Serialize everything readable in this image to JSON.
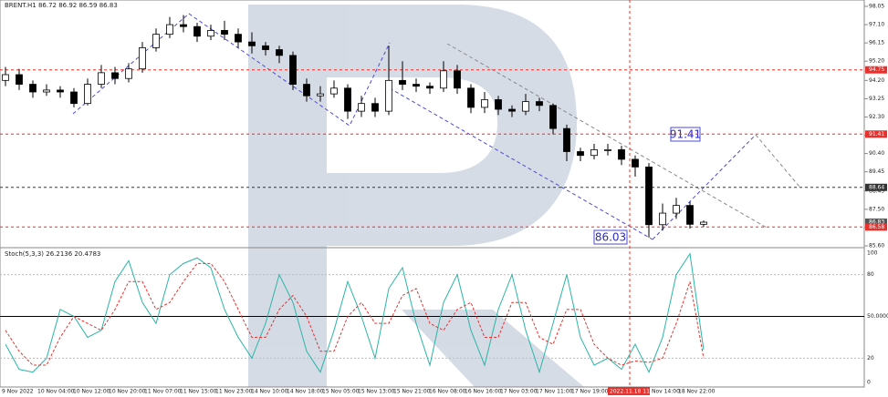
{
  "chart_data": {
    "type": "candlestick",
    "title": "BRENT.H1 86.72 86.92 86.59 86.83",
    "open": [
      94.2,
      94.5,
      94.0,
      93.6,
      93.7,
      93.6,
      93.0,
      94.0,
      94.6,
      94.3,
      94.8,
      95.9,
      96.6,
      97.1,
      97.0,
      96.5,
      96.8,
      96.6,
      96.2,
      96.0,
      95.8,
      95.5,
      94.0,
      93.4,
      93.5,
      93.8,
      92.6,
      93.0,
      92.6,
      94.2,
      94.0,
      93.9,
      93.8,
      94.7,
      93.8,
      92.8,
      93.2,
      92.7,
      92.6,
      93.1,
      92.9,
      91.7,
      90.5,
      90.3,
      90.6,
      90.6,
      90.1,
      89.7,
      86.7,
      87.3,
      87.7,
      86.72
    ],
    "high": [
      94.9,
      94.8,
      94.2,
      94.0,
      93.9,
      93.8,
      94.3,
      95.0,
      94.9,
      95.1,
      96.2,
      96.9,
      97.5,
      97.6,
      97.2,
      97.1,
      97.3,
      96.9,
      96.7,
      96.2,
      96.0,
      95.7,
      94.3,
      93.9,
      94.2,
      94.0,
      93.4,
      93.3,
      96.0,
      95.2,
      94.3,
      94.1,
      95.2,
      95.0,
      94.0,
      93.6,
      93.4,
      92.9,
      93.5,
      93.3,
      93.0,
      91.9,
      90.7,
      90.9,
      90.9,
      90.8,
      90.3,
      89.9,
      87.8,
      88.1,
      87.9,
      86.92
    ],
    "low": [
      93.9,
      93.7,
      93.3,
      93.4,
      93.3,
      92.8,
      92.9,
      93.8,
      94.0,
      94.1,
      94.6,
      95.7,
      96.4,
      96.7,
      96.2,
      96.3,
      96.3,
      95.9,
      95.6,
      95.5,
      95.1,
      93.7,
      93.1,
      93.1,
      93.3,
      92.2,
      92.3,
      92.3,
      92.4,
      93.7,
      93.6,
      93.5,
      93.6,
      93.5,
      92.5,
      92.5,
      92.4,
      92.3,
      92.4,
      92.6,
      91.4,
      90.0,
      90.0,
      90.1,
      90.3,
      89.8,
      89.2,
      86.03,
      86.4,
      87.0,
      86.5,
      86.59
    ],
    "close": [
      94.5,
      94.0,
      93.6,
      93.7,
      93.6,
      93.0,
      94.0,
      94.6,
      94.3,
      94.8,
      95.9,
      96.6,
      97.1,
      97.0,
      96.5,
      96.8,
      96.6,
      96.2,
      96.0,
      95.8,
      95.5,
      94.0,
      93.4,
      93.5,
      93.8,
      92.6,
      93.0,
      92.6,
      94.2,
      94.0,
      93.9,
      93.8,
      94.7,
      93.8,
      92.8,
      93.2,
      92.7,
      92.6,
      93.1,
      92.9,
      91.7,
      90.5,
      90.3,
      90.6,
      90.6,
      90.1,
      89.7,
      86.7,
      87.3,
      87.7,
      86.72,
      86.83
    ],
    "ylim": [
      85.6,
      98.05
    ],
    "yticks": [
      98.05,
      {
        "value": 97.1,
        "label": "97.10"
      },
      96.15,
      {
        "value": 95.2,
        "label": "95.20"
      },
      {
        "value": 94.2,
        "label": "94.20"
      },
      93.25,
      {
        "value": 92.3,
        "label": "92.30"
      },
      91.35,
      {
        "value": 90.4,
        "label": "90.40"
      },
      89.45,
      88.45,
      {
        "value": 87.5,
        "label": "87.50"
      },
      86.55,
      {
        "value": 85.6,
        "label": "85.60"
      }
    ],
    "levels": [
      {
        "value": 94.75,
        "label": "94.75",
        "color": "#e8302c",
        "line": true
      },
      {
        "value": 91.41,
        "label": "91.41",
        "color": "#e8302c",
        "line": true
      },
      {
        "value": 88.64,
        "label": "88.64",
        "color": "#333333",
        "line": true
      },
      {
        "value": 86.83,
        "label": "86.83",
        "color": "#555555",
        "line": false
      },
      {
        "value": 86.58,
        "label": "86.58",
        "color": "#e8302c",
        "line": true
      }
    ],
    "annotations": [
      "91.41",
      "86.03"
    ],
    "xlabels": [
      "9 Nov 2022",
      "10 Nov 04:00",
      "10 Nov 12:00",
      "10 Nov 20:00",
      "11 Nov 07:00",
      "11 Nov 15:00",
      "11 Nov 23:00",
      "14 Nov 10:00",
      "14 Nov 18:00",
      "15 Nov 05:00",
      "15 Nov 13:00",
      "15 Nov 21:00",
      "16 Nov 08:00",
      "16 Nov 16:00",
      "17 Nov 03:00",
      "17 Nov 11:00",
      "17 Nov 19:00",
      "2022.11.18 11:00",
      "Nov 14:00",
      "18 Nov 22:00"
    ],
    "oscillator": {
      "title": "Stoch(5,3,3) 26.2136 20.4783",
      "ylim": [
        0,
        100
      ],
      "yticks": [
        100,
        80,
        {
          "value": 50,
          "label": "50.0000"
        },
        20,
        0
      ],
      "series": [
        {
          "name": "main",
          "color": "#2ab5a8",
          "values": [
            30,
            12,
            10,
            20,
            55,
            50,
            35,
            40,
            75,
            90,
            60,
            45,
            80,
            88,
            92,
            85,
            55,
            35,
            20,
            45,
            80,
            60,
            25,
            10,
            40,
            75,
            50,
            20,
            70,
            85,
            45,
            15,
            60,
            80,
            40,
            15,
            55,
            80,
            40,
            10,
            45,
            80,
            35,
            15,
            20,
            12,
            30,
            10,
            35,
            80,
            95,
            26
          ]
        },
        {
          "name": "signal",
          "color": "#e8302c",
          "values": [
            40,
            25,
            15,
            15,
            35,
            50,
            45,
            40,
            55,
            75,
            75,
            55,
            60,
            75,
            88,
            88,
            75,
            55,
            35,
            35,
            55,
            65,
            50,
            25,
            25,
            50,
            60,
            45,
            45,
            65,
            70,
            45,
            40,
            55,
            60,
            35,
            35,
            60,
            60,
            35,
            30,
            55,
            55,
            30,
            20,
            15,
            18,
            17,
            20,
            45,
            75,
            20
          ]
        }
      ]
    }
  }
}
